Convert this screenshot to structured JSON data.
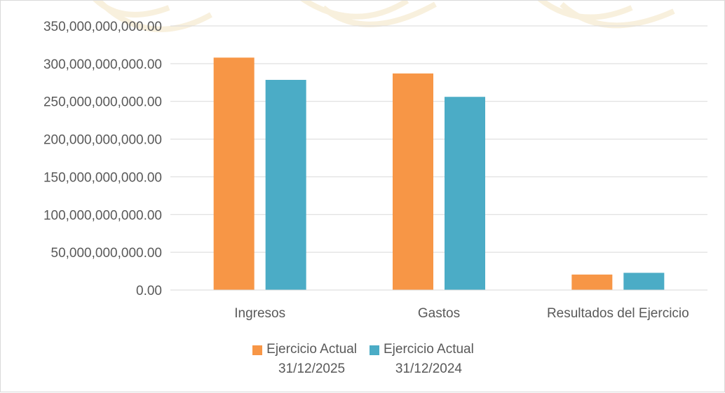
{
  "chart_data": {
    "type": "bar",
    "categories": [
      "Ingresos",
      "Gastos",
      "Resultados del Ejercicio"
    ],
    "series": [
      {
        "name": "Ejercicio Actual 31/12/2025",
        "name_lines": [
          "Ejercicio Actual",
          "31/12/2025"
        ],
        "color": "#F79646",
        "values": [
          308000000000,
          287000000000,
          20500000000
        ]
      },
      {
        "name": "Ejercicio Actual 31/12/2024",
        "name_lines": [
          "Ejercicio Actual",
          "31/12/2024"
        ],
        "color": "#4BACC6",
        "values": [
          278500000000,
          256000000000,
          22800000000
        ]
      }
    ],
    "yticks": [
      "0.00",
      "50,000,000,000.00",
      "100,000,000,000.00",
      "150,000,000,000.00",
      "200,000,000,000.00",
      "250,000,000,000.00",
      "300,000,000,000.00",
      "350,000,000,000.00"
    ],
    "ylim": [
      0,
      350000000000
    ],
    "grid": true,
    "legend_position": "bottom",
    "title": "",
    "xlabel": "",
    "ylabel": ""
  }
}
